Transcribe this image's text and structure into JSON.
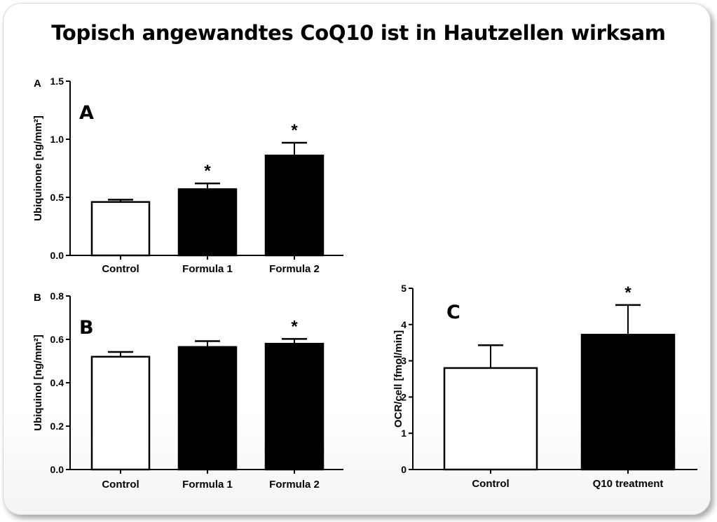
{
  "slide": {
    "title": "Topisch angewandtes CoQ10 ist in Hautzellen wirksam"
  },
  "chart_data": [
    {
      "type": "bar",
      "panel_letter": "A",
      "panel_small_letter": "A",
      "categories": [
        "Control",
        "Formula 1",
        "Formula 2"
      ],
      "values": [
        0.46,
        0.57,
        0.86
      ],
      "errors": [
        0.02,
        0.05,
        0.11
      ],
      "significant": [
        false,
        true,
        true
      ],
      "significance_mark": "*",
      "fill_colors": [
        "#ffffff",
        "#000000",
        "#000000"
      ],
      "ylabel": "Ubiquinone [ng/mm²]",
      "ylim": [
        0,
        1.5
      ],
      "yticks": [
        "0.0",
        "0.5",
        "1.0",
        "1.5"
      ],
      "grid": false
    },
    {
      "type": "bar",
      "panel_letter": "B",
      "panel_small_letter": "B",
      "categories": [
        "Control",
        "Formula 1",
        "Formula 2"
      ],
      "values": [
        0.52,
        0.565,
        0.58
      ],
      "errors": [
        0.022,
        0.027,
        0.022
      ],
      "significant": [
        false,
        false,
        true
      ],
      "significance_mark": "*",
      "fill_colors": [
        "#ffffff",
        "#000000",
        "#000000"
      ],
      "ylabel": "Ubiquinol [ng/mm²]",
      "ylim": [
        0,
        0.8
      ],
      "yticks": [
        "0.0",
        "0.2",
        "0.4",
        "0.6",
        "0.8"
      ],
      "grid": false
    },
    {
      "type": "bar",
      "panel_letter": "C",
      "categories": [
        "Control",
        "Q10 treatment"
      ],
      "values": [
        2.8,
        3.72
      ],
      "errors": [
        0.63,
        0.82
      ],
      "significant": [
        false,
        true
      ],
      "significance_mark": "*",
      "fill_colors": [
        "#ffffff",
        "#000000"
      ],
      "ylabel": "OCR/cell [fmol/min]",
      "ylim": [
        0,
        5
      ],
      "yticks": [
        "0",
        "1",
        "2",
        "3",
        "4",
        "5"
      ],
      "grid": false
    }
  ]
}
